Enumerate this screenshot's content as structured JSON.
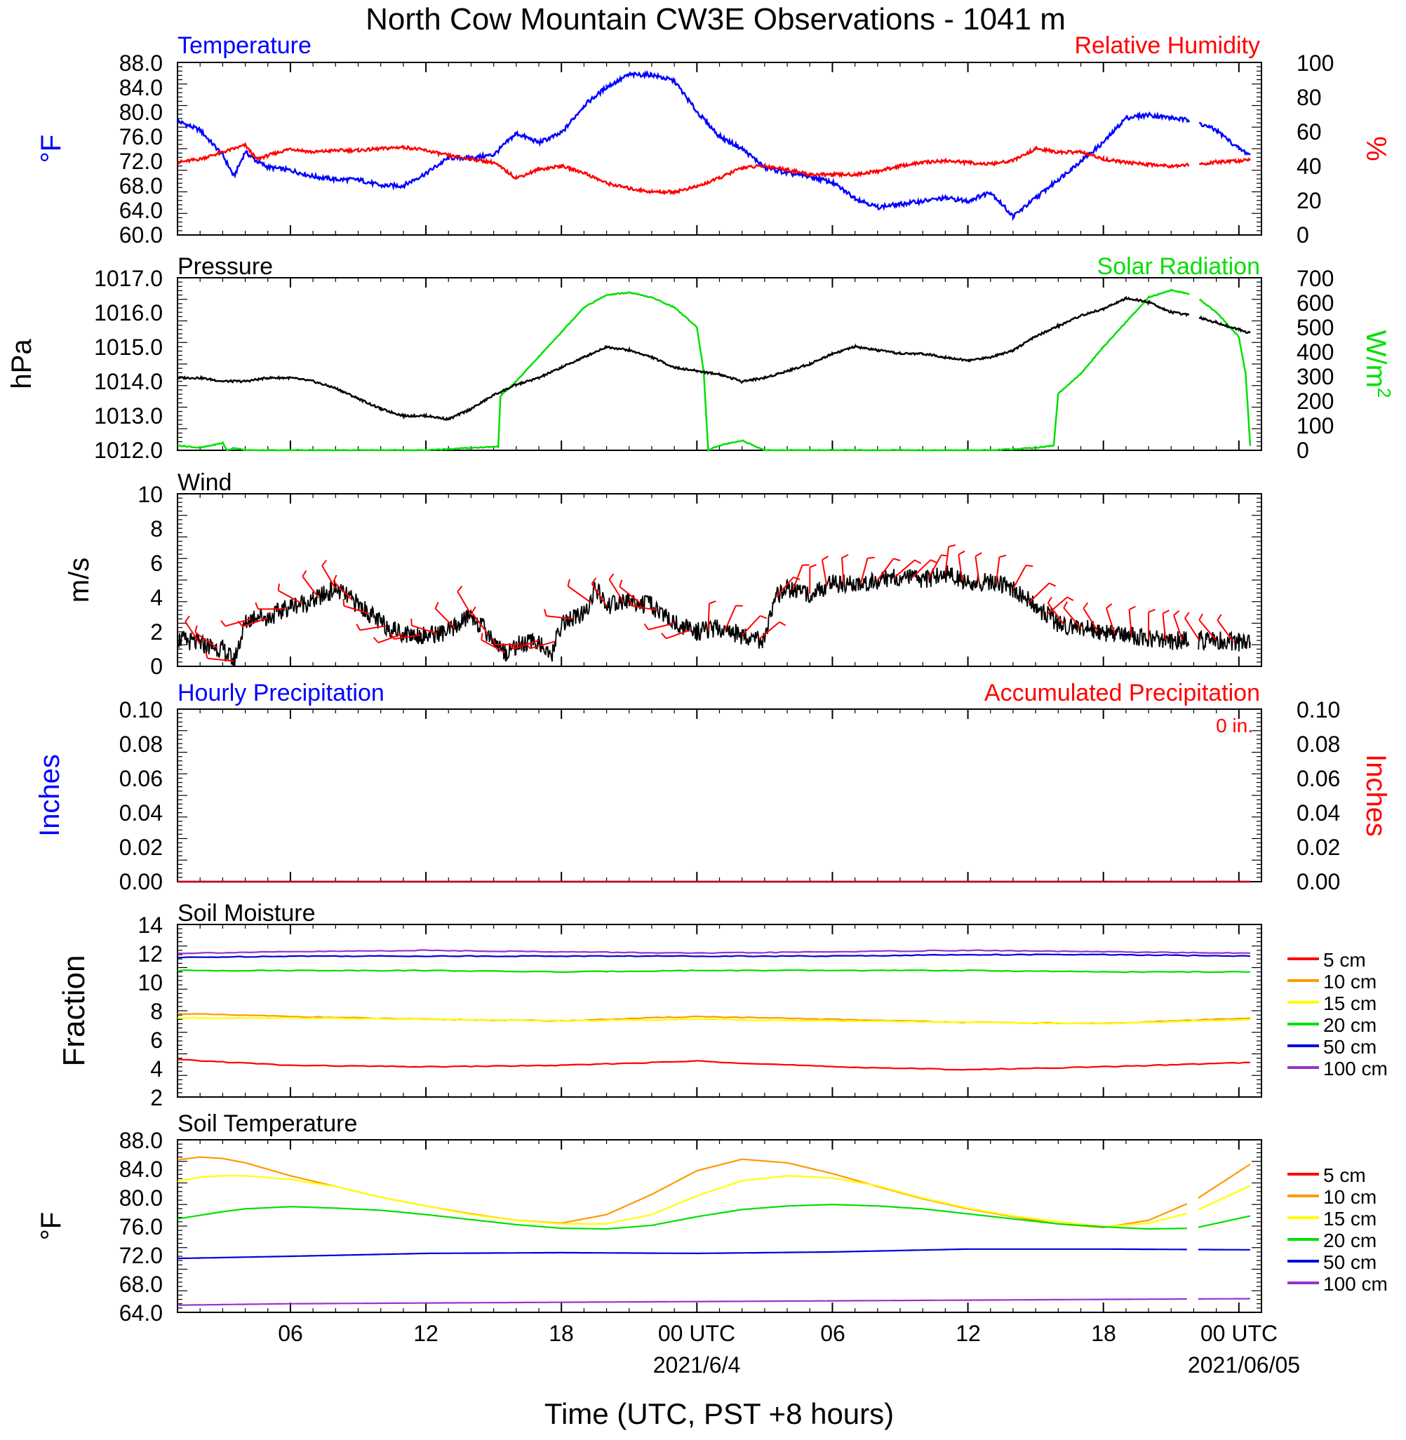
{
  "title": "North Cow Mountain CW3E Observations - 1041 m",
  "xaxis": {
    "label": "Time (UTC, PST +8 hours)",
    "ticks": [
      {
        "h": 6,
        "label": "06"
      },
      {
        "h": 12,
        "label": "12"
      },
      {
        "h": 18,
        "label": "18"
      },
      {
        "h": 24,
        "label": "00 UTC",
        "date": "2021/6/4"
      },
      {
        "h": 30,
        "label": "06"
      },
      {
        "h": 36,
        "label": "12"
      },
      {
        "h": 42,
        "label": "18"
      },
      {
        "h": 48,
        "label": "00 UTC",
        "date": "2021/06/05"
      }
    ],
    "range_hours": [
      1,
      49
    ]
  },
  "colors": {
    "temperature": "#0000ff",
    "humidity": "#ff0000",
    "pressure": "#000000",
    "solar": "#00e000",
    "wind": "#000000",
    "barb": "#ff0000",
    "hourly_precip": "#0000ff",
    "accum_precip": "#ff0000",
    "depth_5": "#ff0000",
    "depth_10": "#ff9900",
    "depth_15": "#ffff00",
    "depth_20": "#00e000",
    "depth_50": "#0000dd",
    "depth_100": "#9933cc"
  },
  "panels": {
    "temp_rh": {
      "left_title": "Temperature",
      "right_title": "Relative Humidity",
      "left_unit": "°F",
      "right_unit": "%",
      "left_ticks": [
        "88.0",
        "84.0",
        "80.0",
        "76.0",
        "72.0",
        "68.0",
        "64.0",
        "60.0"
      ],
      "right_ticks": [
        "100",
        "80",
        "60",
        "40",
        "20",
        "0"
      ]
    },
    "pressure_solar": {
      "left_title": "Pressure",
      "right_title": "Solar Radiation",
      "left_unit": "hPa",
      "right_unit": "W/m",
      "right_unit_sup": "2",
      "left_ticks": [
        "1017.0",
        "1016.0",
        "1015.0",
        "1014.0",
        "1013.0",
        "1012.0"
      ],
      "right_ticks": [
        "700",
        "600",
        "500",
        "400",
        "300",
        "200",
        "100",
        "0"
      ]
    },
    "wind": {
      "left_title": "Wind",
      "left_unit": "m/s",
      "left_ticks": [
        "10",
        "8",
        "6",
        "4",
        "2",
        "0"
      ]
    },
    "precip": {
      "left_title": "Hourly Precipitation",
      "right_title": "Accumulated Precipitation",
      "total_label": "0 in.",
      "left_unit": "Inches",
      "right_unit": "Inches",
      "left_ticks": [
        "0.10",
        "0.08",
        "0.06",
        "0.04",
        "0.02",
        "0.00"
      ],
      "right_ticks": [
        "0.10",
        "0.08",
        "0.06",
        "0.04",
        "0.02",
        "0.00"
      ]
    },
    "soil_moisture": {
      "left_title": "Soil Moisture",
      "left_unit": "Fraction",
      "left_ticks": [
        "14",
        "12",
        "10",
        "8",
        "6",
        "4",
        "2"
      ],
      "legend": [
        "5 cm",
        "10 cm",
        "15 cm",
        "20 cm",
        "50 cm",
        "100 cm"
      ]
    },
    "soil_temp": {
      "left_title": "Soil Temperature",
      "left_unit": "°F",
      "left_ticks": [
        "88.0",
        "84.0",
        "80.0",
        "76.0",
        "72.0",
        "68.0",
        "64.0"
      ],
      "legend": [
        "5 cm",
        "10 cm",
        "15 cm",
        "20 cm",
        "50 cm",
        "100 cm"
      ]
    }
  },
  "chart_data": [
    {
      "type": "line",
      "title": "Temperature",
      "ylabel": "°F",
      "ylim": [
        60,
        88
      ],
      "x_units": "hours since 2021-06-03 00 UTC",
      "series": [
        {
          "name": "Temperature",
          "x": [
            1,
            2,
            3,
            3.5,
            4,
            4.5,
            5,
            6,
            7,
            8,
            9,
            10,
            11,
            12,
            13,
            14,
            15,
            16,
            17,
            18,
            19,
            20,
            21,
            22,
            23,
            24,
            25,
            26,
            27,
            28,
            29,
            30,
            31,
            32,
            33,
            34,
            35,
            36,
            37,
            38,
            39,
            40,
            41,
            42,
            43,
            44,
            45,
            46,
            47,
            48,
            48.5
          ],
          "y": [
            78.5,
            77,
            73,
            69.5,
            73.5,
            72,
            71,
            70.5,
            69.5,
            69,
            69,
            68,
            68,
            70,
            72.5,
            72.5,
            73,
            76.5,
            75,
            76.5,
            81,
            84,
            86,
            86,
            85,
            80,
            76,
            74,
            71,
            70,
            69.5,
            68.5,
            66,
            64.5,
            65,
            65.5,
            66,
            65.5,
            67,
            63,
            66,
            69,
            72,
            75,
            79,
            79.5,
            79,
            78.5,
            77,
            74,
            73
          ]
        },
        {
          "name": "Relative Humidity",
          "axis": "right",
          "x": [
            1,
            2,
            3,
            4,
            4.5,
            5,
            6,
            7,
            8,
            9,
            10,
            11,
            12,
            13,
            14,
            15,
            16,
            17,
            18,
            19,
            20,
            21,
            22,
            23,
            24,
            25,
            26,
            27,
            28,
            29,
            30,
            31,
            32,
            33,
            34,
            35,
            36,
            37,
            38,
            39,
            40,
            41,
            42,
            43,
            44,
            45,
            46,
            47,
            48,
            48.5
          ],
          "y": [
            42,
            44,
            48,
            52,
            44,
            46,
            50,
            48,
            49,
            49,
            50,
            51,
            49,
            46,
            44,
            42,
            33,
            38,
            40,
            36,
            30,
            27,
            25,
            25,
            28,
            33,
            39,
            40,
            38,
            35,
            35,
            35,
            37,
            40,
            42,
            43,
            42,
            41,
            43,
            50,
            48,
            48,
            44,
            42,
            41,
            40,
            41,
            42,
            43,
            44
          ]
        }
      ]
    },
    {
      "type": "line",
      "title": "Pressure",
      "ylabel": "hPa",
      "ylim": [
        1012,
        1017
      ],
      "series": [
        {
          "name": "Pressure",
          "x": [
            1,
            2,
            3,
            4,
            5,
            6,
            7,
            8,
            9,
            10,
            11,
            12,
            13,
            14,
            15,
            16,
            17,
            18,
            19,
            20,
            21,
            22,
            23,
            24,
            25,
            26,
            27,
            28,
            29,
            30,
            31,
            32,
            33,
            34,
            35,
            36,
            37,
            38,
            39,
            40,
            41,
            42,
            43,
            44,
            45,
            46,
            47,
            48,
            48.5
          ],
          "y": [
            1014.1,
            1014.1,
            1014.0,
            1014.0,
            1014.1,
            1014.1,
            1014.0,
            1013.8,
            1013.5,
            1013.2,
            1013.0,
            1013.0,
            1012.9,
            1013.2,
            1013.6,
            1013.9,
            1014.1,
            1014.4,
            1014.7,
            1015.0,
            1014.9,
            1014.7,
            1014.4,
            1014.3,
            1014.2,
            1014.0,
            1014.1,
            1014.3,
            1014.5,
            1014.8,
            1015.0,
            1014.9,
            1014.8,
            1014.8,
            1014.7,
            1014.6,
            1014.7,
            1014.9,
            1015.3,
            1015.6,
            1015.9,
            1016.1,
            1016.4,
            1016.3,
            1016.0,
            1015.9,
            1015.7,
            1015.5,
            1015.4
          ]
        },
        {
          "name": "Solar Radiation",
          "axis": "right",
          "x": [
            1,
            2,
            3,
            3.2,
            3.5,
            4,
            10,
            12,
            13,
            14,
            15.2,
            15.3,
            16,
            17,
            18,
            19,
            20,
            21,
            22,
            23,
            24,
            24.3,
            24.5,
            25,
            26,
            27,
            28,
            35,
            37,
            38,
            39,
            39.8,
            40,
            41,
            42,
            43,
            44,
            45,
            46,
            47,
            48,
            48.3,
            48.5
          ],
          "y": [
            20,
            10,
            30,
            0,
            10,
            0,
            0,
            0,
            5,
            10,
            15,
            220,
            280,
            380,
            480,
            580,
            630,
            640,
            620,
            580,
            500,
            320,
            0,
            20,
            40,
            0,
            0,
            0,
            0,
            5,
            10,
            20,
            230,
            310,
            420,
            520,
            620,
            650,
            630,
            560,
            460,
            310,
            20
          ]
        }
      ]
    },
    {
      "type": "line",
      "title": "Wind",
      "ylabel": "m/s",
      "ylim": [
        0,
        10
      ],
      "series": [
        {
          "name": "Wind",
          "x": [
            1,
            2,
            3,
            3.5,
            4,
            4.5,
            5,
            6,
            7,
            8,
            9,
            10,
            11,
            12,
            13,
            14,
            15,
            15.5,
            16,
            17,
            17.5,
            18,
            19,
            19.5,
            20,
            21,
            22,
            23,
            24,
            25,
            26,
            27,
            27.5,
            28,
            29,
            30,
            31,
            32,
            33,
            34,
            35,
            36,
            37,
            38,
            39,
            40,
            41,
            42,
            43,
            44,
            45,
            46,
            47,
            48,
            48.5
          ],
          "y": [
            1.6,
            1.3,
            1.0,
            0.3,
            2.5,
            3.0,
            2.8,
            3.5,
            3.8,
            4.5,
            3.6,
            2.5,
            1.9,
            1.8,
            2.0,
            3.0,
            1.5,
            0.8,
            1.2,
            1.5,
            0.4,
            2.5,
            3.0,
            4.5,
            3.5,
            3.8,
            3.5,
            2.5,
            2.0,
            2.2,
            1.8,
            1.5,
            4.0,
            4.5,
            4.2,
            4.8,
            4.7,
            5.0,
            5.2,
            5.0,
            5.4,
            4.8,
            4.9,
            4.5,
            3.5,
            2.5,
            2.2,
            2.0,
            1.8,
            1.6,
            1.5,
            1.5,
            1.5,
            1.4,
            1.4
          ]
        }
      ]
    },
    {
      "type": "line",
      "title": "Hourly Precipitation",
      "ylabel": "Inches",
      "ylim": [
        0,
        0.1
      ],
      "series": [
        {
          "name": "Hourly Precipitation",
          "x": [
            1,
            48.5
          ],
          "y": [
            0,
            0
          ]
        },
        {
          "name": "Accumulated Precipitation",
          "axis": "right",
          "x": [
            1,
            48.5
          ],
          "y": [
            0,
            0
          ]
        }
      ]
    },
    {
      "type": "line",
      "title": "Soil Moisture",
      "ylabel": "Fraction",
      "ylim": [
        2,
        14
      ],
      "series": [
        {
          "name": "5 cm",
          "x": [
            1,
            6,
            12,
            18,
            24,
            30,
            36,
            42,
            48.5
          ],
          "y": [
            4.6,
            4.2,
            4.1,
            4.2,
            4.5,
            4.1,
            3.9,
            4.1,
            4.4
          ]
        },
        {
          "name": "10 cm",
          "x": [
            1,
            6,
            12,
            18,
            24,
            30,
            36,
            42,
            48.5
          ],
          "y": [
            7.8,
            7.6,
            7.4,
            7.3,
            7.6,
            7.4,
            7.2,
            7.1,
            7.5
          ]
        },
        {
          "name": "15 cm",
          "x": [
            1,
            6,
            12,
            18,
            24,
            30,
            36,
            42,
            48.5
          ],
          "y": [
            7.5,
            7.5,
            7.4,
            7.3,
            7.4,
            7.3,
            7.2,
            7.1,
            7.4
          ]
        },
        {
          "name": "20 cm",
          "x": [
            1,
            6,
            12,
            18,
            24,
            30,
            36,
            42,
            48.5
          ],
          "y": [
            10.8,
            10.8,
            10.8,
            10.7,
            10.8,
            10.8,
            10.8,
            10.7,
            10.7
          ]
        },
        {
          "name": "50 cm",
          "x": [
            1,
            6,
            12,
            18,
            24,
            30,
            36,
            42,
            48.5
          ],
          "y": [
            11.7,
            11.8,
            11.8,
            11.8,
            11.8,
            11.8,
            11.9,
            11.9,
            11.8
          ]
        },
        {
          "name": "100 cm",
          "x": [
            1,
            6,
            12,
            18,
            24,
            30,
            36,
            42,
            48.5
          ],
          "y": [
            12.0,
            12.1,
            12.2,
            12.1,
            12.0,
            12.1,
            12.2,
            12.1,
            12.0
          ]
        }
      ]
    },
    {
      "type": "line",
      "title": "Soil Temperature",
      "ylabel": "°F",
      "ylim": [
        64,
        88
      ],
      "series": [
        {
          "name": "10 cm",
          "x": [
            1,
            2,
            3,
            4,
            6,
            8,
            10,
            12,
            14,
            16,
            18,
            20,
            22,
            24,
            26,
            28,
            30,
            32,
            34,
            36,
            38,
            40,
            42,
            44,
            46,
            48.5
          ],
          "y": [
            85.2,
            85.6,
            85.4,
            84.8,
            83.0,
            81.5,
            80.0,
            78.8,
            77.7,
            76.8,
            76.4,
            77.6,
            80.4,
            83.7,
            85.3,
            84.8,
            83.3,
            81.5,
            79.8,
            78.4,
            77.3,
            76.3,
            75.8,
            76.8,
            79.5,
            84.6
          ]
        },
        {
          "name": "15 cm",
          "x": [
            1,
            2,
            3,
            4,
            6,
            8,
            10,
            12,
            14,
            16,
            18,
            20,
            22,
            24,
            26,
            28,
            30,
            32,
            34,
            36,
            38,
            40,
            42,
            44,
            46,
            48.5
          ],
          "y": [
            82.2,
            82.8,
            83.0,
            83.0,
            82.5,
            81.5,
            80.0,
            78.8,
            77.6,
            76.8,
            76.3,
            76.3,
            77.6,
            80.2,
            82.3,
            83.0,
            82.7,
            81.6,
            79.9,
            78.5,
            77.4,
            76.6,
            75.9,
            76.4,
            78.0,
            81.6
          ]
        },
        {
          "name": "20 cm",
          "x": [
            1,
            2,
            3,
            4,
            6,
            8,
            10,
            12,
            14,
            16,
            18,
            20,
            22,
            24,
            26,
            28,
            30,
            32,
            34,
            36,
            38,
            40,
            42,
            44,
            46,
            48.5
          ],
          "y": [
            77.0,
            77.5,
            78.0,
            78.4,
            78.7,
            78.5,
            78.2,
            77.6,
            76.9,
            76.2,
            75.7,
            75.6,
            76.1,
            77.3,
            78.3,
            78.8,
            79.0,
            78.8,
            78.4,
            77.7,
            77.0,
            76.3,
            75.9,
            75.6,
            75.7,
            77.4
          ]
        },
        {
          "name": "50 cm",
          "x": [
            1,
            6,
            12,
            18,
            24,
            30,
            36,
            42,
            48.5
          ],
          "y": [
            71.5,
            71.8,
            72.2,
            72.3,
            72.2,
            72.4,
            72.8,
            72.8,
            72.7
          ]
        },
        {
          "name": "100 cm",
          "x": [
            1,
            6,
            12,
            18,
            24,
            30,
            36,
            42,
            48.5
          ],
          "y": [
            65.0,
            65.2,
            65.3,
            65.4,
            65.5,
            65.6,
            65.7,
            65.8,
            65.9
          ]
        }
      ]
    }
  ]
}
